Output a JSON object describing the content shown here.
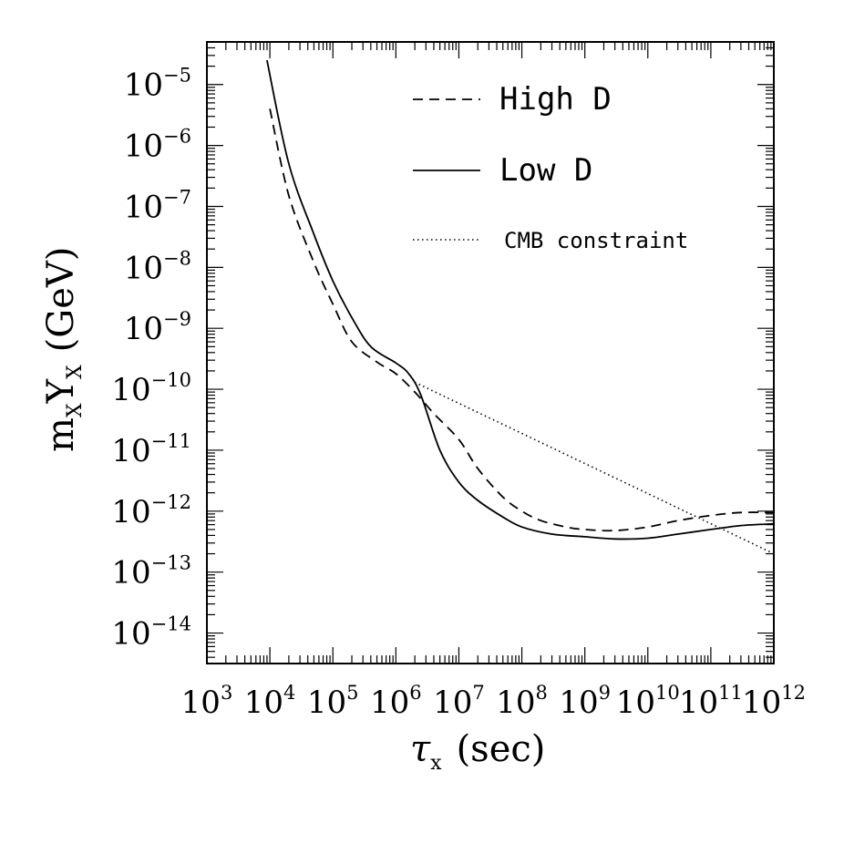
{
  "chart_data": {
    "type": "line",
    "x_scale": "log",
    "y_scale": "log",
    "xlim": [
      1000.0,
      1000000000000.0
    ],
    "ylim": [
      3.16e-15,
      5e-05
    ],
    "xlabel": {
      "symbol": "τ",
      "subscript": "x",
      "rest": "(sec)"
    },
    "ylabel": {
      "m": "m",
      "m_sub": "X",
      "Y": "Y",
      "Y_sub": "X",
      "rest": "(GeV)"
    },
    "x_ticks": [
      {
        "base": "10",
        "exp": "3",
        "value": 1000.0
      },
      {
        "base": "10",
        "exp": "4",
        "value": 10000.0
      },
      {
        "base": "10",
        "exp": "5",
        "value": 100000.0
      },
      {
        "base": "10",
        "exp": "6",
        "value": 1000000.0
      },
      {
        "base": "10",
        "exp": "7",
        "value": 10000000.0
      },
      {
        "base": "10",
        "exp": "8",
        "value": 100000000.0
      },
      {
        "base": "10",
        "exp": "9",
        "value": 1000000000.0
      },
      {
        "base": "10",
        "exp": "10",
        "value": 10000000000.0
      },
      {
        "base": "10",
        "exp": "11",
        "value": 100000000000.0
      },
      {
        "base": "10",
        "exp": "12",
        "value": 1000000000000.0
      }
    ],
    "y_ticks": [
      {
        "base": "10",
        "exp": "−5",
        "value": 1e-05
      },
      {
        "base": "10",
        "exp": "−6",
        "value": 1e-06
      },
      {
        "base": "10",
        "exp": "−7",
        "value": 1e-07
      },
      {
        "base": "10",
        "exp": "−8",
        "value": 1e-08
      },
      {
        "base": "10",
        "exp": "−9",
        "value": 1e-09
      },
      {
        "base": "10",
        "exp": "−10",
        "value": 1e-10
      },
      {
        "base": "10",
        "exp": "−11",
        "value": 1e-11
      },
      {
        "base": "10",
        "exp": "−12",
        "value": 1e-12
      },
      {
        "base": "10",
        "exp": "−13",
        "value": 1e-13
      },
      {
        "base": "10",
        "exp": "−14",
        "value": 1e-14
      }
    ],
    "series": [
      {
        "name": "High D",
        "style": "dashed",
        "x": [
          10000.0,
          20000.0,
          50000.0,
          100000.0,
          200000.0,
          500000.0,
          1000000.0,
          2000000.0,
          4000000.0,
          10000000.0,
          20000000.0,
          50000000.0,
          100000000.0,
          200000000.0,
          500000000.0,
          1000000000.0,
          3000000000.0,
          10000000000.0,
          30000000000.0,
          100000000000.0,
          300000000000.0,
          1000000000000.0
        ],
        "y": [
          4e-06,
          1.5e-07,
          1.2e-08,
          2.5e-09,
          6e-10,
          2.8e-10,
          1.8e-10,
          9e-11,
          4e-11,
          1.5e-11,
          5e-12,
          1.7e-12,
          1e-12,
          7e-13,
          5.5e-13,
          5e-13,
          4.8e-13,
          5.5e-13,
          7e-13,
          8.5e-13,
          9.5e-13,
          9.5e-13
        ]
      },
      {
        "name": "Low D",
        "style": "solid",
        "x": [
          9000.0,
          20000.0,
          50000.0,
          100000.0,
          200000.0,
          400000.0,
          1000000.0,
          1600000.0,
          2500000.0,
          5000000.0,
          10000000.0,
          20000000.0,
          50000000.0,
          100000000.0,
          300000000.0,
          1000000000.0,
          3000000000.0,
          10000000000.0,
          30000000000.0,
          100000000000.0,
          300000000000.0,
          1000000000000.0
        ],
        "y": [
          2.5e-05,
          5e-07,
          3.5e-08,
          6e-09,
          1.5e-09,
          5e-10,
          2.7e-10,
          1.8e-10,
          8e-11,
          1e-11,
          3e-12,
          1.5e-12,
          8e-13,
          5.5e-13,
          4.2e-13,
          3.8e-13,
          3.5e-13,
          3.6e-13,
          4.2e-13,
          5e-13,
          5.8e-13,
          6.2e-13
        ]
      },
      {
        "name": "CMB constraint",
        "style": "dotted",
        "x": [
          2000000.0,
          1000000000000.0
        ],
        "y": [
          1.3e-10,
          2e-13
        ]
      }
    ],
    "legend_placement": "top-right"
  }
}
